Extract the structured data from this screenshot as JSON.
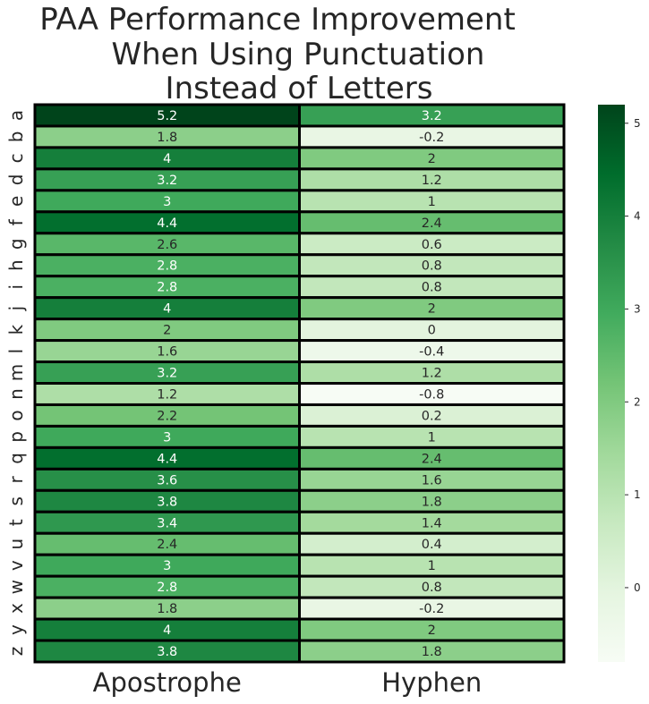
{
  "chart_data": {
    "type": "heatmap",
    "title_lines": [
      "PAA Performance Improvement",
      "When Using Punctuation",
      "Instead of Letters"
    ],
    "columns": [
      "Apostrophe",
      "Hyphen"
    ],
    "rows": [
      "a",
      "b",
      "c",
      "d",
      "e",
      "f",
      "g",
      "h",
      "i",
      "j",
      "k",
      "l",
      "m",
      "n",
      "o",
      "p",
      "q",
      "r",
      "s",
      "t",
      "u",
      "v",
      "w",
      "x",
      "y",
      "z"
    ],
    "values": [
      [
        5.2,
        3.2
      ],
      [
        1.8,
        -0.2
      ],
      [
        4,
        2
      ],
      [
        3.2,
        1.2
      ],
      [
        3,
        1
      ],
      [
        4.4,
        2.4
      ],
      [
        2.6,
        0.6
      ],
      [
        2.8,
        0.8
      ],
      [
        2.8,
        0.8
      ],
      [
        4,
        2
      ],
      [
        2,
        0
      ],
      [
        1.6,
        -0.4
      ],
      [
        3.2,
        1.2
      ],
      [
        1.2,
        -0.8
      ],
      [
        2.2,
        0.2
      ],
      [
        3,
        1
      ],
      [
        4.4,
        2.4
      ],
      [
        3.6,
        1.6
      ],
      [
        3.8,
        1.8
      ],
      [
        3.4,
        1.4
      ],
      [
        2.4,
        0.4
      ],
      [
        3,
        1
      ],
      [
        2.8,
        0.8
      ],
      [
        1.8,
        -0.2
      ],
      [
        4,
        2
      ],
      [
        3.8,
        1.8
      ]
    ],
    "colormap": "Greens",
    "vmin": -0.8,
    "vmax": 5.2,
    "colorbar_ticks": [
      0,
      1,
      2,
      3,
      4,
      5
    ],
    "cell_border_color": "#000000"
  }
}
